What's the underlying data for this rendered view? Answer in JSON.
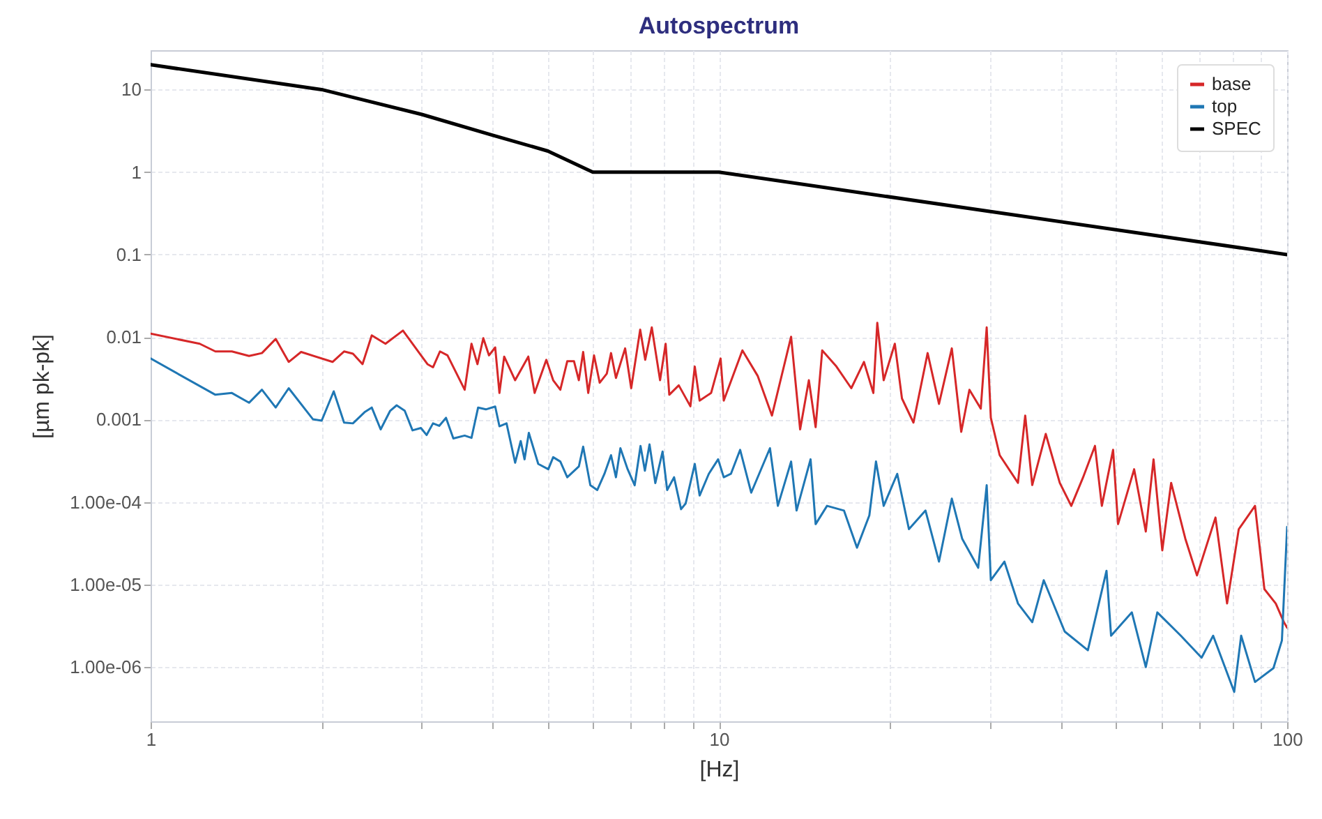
{
  "chart_data": {
    "type": "line",
    "title": "Autospectrum",
    "xlabel": "[Hz]",
    "ylabel": "[µm pk-pk]",
    "log": "xy",
    "grid": true,
    "legend": "top right",
    "xlim": [
      1,
      100
    ],
    "ylim": [
      2.2e-07,
      30
    ],
    "xticks": [
      1,
      {
        "value": 2,
        "label": null
      },
      {
        "value": 3,
        "label": null
      },
      {
        "value": 4,
        "label": null
      },
      {
        "value": 5,
        "label": null
      },
      {
        "value": 6,
        "label": null
      },
      {
        "value": 7,
        "label": null
      },
      {
        "value": 8,
        "label": null
      },
      {
        "value": 9,
        "label": null
      },
      10,
      {
        "value": 20,
        "label": null
      },
      {
        "value": 30,
        "label": null
      },
      {
        "value": 40,
        "label": null
      },
      {
        "value": 50,
        "label": null
      },
      {
        "value": 60,
        "label": null
      },
      {
        "value": 70,
        "label": null
      },
      {
        "value": 80,
        "label": null
      },
      {
        "value": 90,
        "label": null
      },
      100
    ],
    "yticks": [
      {
        "value": 1e-06,
        "label": "1.00e-06"
      },
      {
        "value": 1e-05,
        "label": "1.00e-05"
      },
      {
        "value": 0.0001,
        "label": "1.00e-04"
      },
      0.001,
      0.01,
      0.1,
      1,
      10
    ],
    "series": [
      {
        "name": "base",
        "color": "#d62728",
        "x": [
          1,
          1.22,
          1.3,
          1.39,
          1.49,
          1.57,
          1.66,
          1.75,
          1.84,
          2.09,
          2.19,
          2.27,
          2.36,
          2.45,
          2.59,
          2.78,
          3.07,
          3.14,
          3.23,
          3.33,
          3.57,
          3.67,
          3.76,
          3.85,
          3.94,
          4.04,
          4.11,
          4.19,
          4.38,
          4.62,
          4.74,
          4.97,
          5.11,
          5.26,
          5.41,
          5.56,
          5.67,
          5.77,
          5.89,
          6.03,
          6.17,
          6.35,
          6.46,
          6.59,
          6.84,
          7.01,
          7.27,
          7.42,
          7.62,
          7.88,
          8.06,
          8.18,
          8.5,
          8.91,
          9.07,
          9.25,
          9.69,
          10.07,
          10.2,
          11,
          11.7,
          12.4,
          13.4,
          13.9,
          14.4,
          14.8,
          15.2,
          16.1,
          17.1,
          18,
          18.7,
          19,
          19.5,
          20.4,
          21,
          22,
          23.3,
          24.4,
          25.7,
          26.7,
          27.6,
          28.9,
          29.6,
          30.1,
          31.2,
          33.6,
          34.6,
          35.6,
          37.6,
          39.8,
          41.7,
          43.7,
          45.9,
          47.2,
          49.4,
          50.4,
          53.8,
          56.4,
          58.2,
          60.3,
          62.5,
          66.2,
          69.4,
          74.8,
          78.4,
          82.2,
          87.8,
          91.2,
          95.5,
          98.7,
          100
        ],
        "values": [
          0.011,
          0.0083,
          0.0067,
          0.0067,
          0.0059,
          0.0064,
          0.0095,
          0.005,
          0.0066,
          0.005,
          0.0067,
          0.0063,
          0.0047,
          0.0105,
          0.0083,
          0.012,
          0.0047,
          0.0043,
          0.0067,
          0.006,
          0.0023,
          0.0083,
          0.0047,
          0.0097,
          0.006,
          0.0075,
          0.0021,
          0.0058,
          0.003,
          0.0058,
          0.0021,
          0.0053,
          0.003,
          0.0023,
          0.0051,
          0.0051,
          0.003,
          0.0066,
          0.0021,
          0.006,
          0.0028,
          0.0036,
          0.0064,
          0.0032,
          0.0073,
          0.0024,
          0.0123,
          0.0053,
          0.0131,
          0.003,
          0.0083,
          0.002,
          0.0026,
          0.00145,
          0.0044,
          0.0017,
          0.0021,
          0.0055,
          0.0017,
          0.0069,
          0.0034,
          0.00112,
          0.0101,
          0.00076,
          0.003,
          0.00081,
          0.0069,
          0.0044,
          0.0024,
          0.005,
          0.0021,
          0.0149,
          0.003,
          0.0083,
          0.0018,
          0.00092,
          0.0064,
          0.00155,
          0.0073,
          0.00071,
          0.0023,
          0.00136,
          0.0131,
          0.00105,
          0.00037,
          0.000171,
          0.00112,
          0.000161,
          0.00067,
          0.000171,
          9e-05,
          0.000196,
          0.00048,
          9e-05,
          0.00043,
          5.4e-05,
          0.00025,
          4.4e-05,
          0.00033,
          2.6e-05,
          0.000171,
          3.6e-05,
          1.29e-05,
          6.5e-05,
          5.9e-06,
          4.7e-05,
          9e-05,
          8.8e-06,
          5.9e-06,
          3.5e-06,
          3e-06
        ]
      },
      {
        "name": "top",
        "color": "#1f77b4",
        "x": [
          1,
          1.3,
          1.39,
          1.49,
          1.57,
          1.66,
          1.75,
          1.93,
          2,
          2.1,
          2.19,
          2.27,
          2.38,
          2.45,
          2.54,
          2.64,
          2.71,
          2.8,
          2.89,
          2.99,
          3.06,
          3.14,
          3.22,
          3.31,
          3.41,
          3.57,
          3.67,
          3.77,
          3.89,
          4.04,
          4.11,
          4.23,
          4.38,
          4.48,
          4.55,
          4.63,
          4.81,
          5.01,
          5.11,
          5.26,
          5.41,
          5.67,
          5.77,
          5.94,
          6.11,
          6.29,
          6.46,
          6.59,
          6.71,
          6.91,
          7.11,
          7.28,
          7.41,
          7.55,
          7.73,
          7.96,
          8.11,
          8.34,
          8.58,
          8.74,
          9.07,
          9.25,
          9.6,
          9.97,
          10.2,
          10.5,
          10.9,
          11.4,
          12.3,
          12.7,
          13.4,
          13.7,
          14.5,
          14.8,
          15.5,
          16.6,
          17.5,
          18.4,
          18.9,
          19.5,
          20.6,
          21.6,
          23.1,
          24.4,
          25.7,
          26.8,
          28.6,
          29.6,
          30.1,
          31.8,
          33.6,
          35.6,
          37.3,
          40.6,
          44.6,
          48.1,
          49,
          53.3,
          56.4,
          59.1,
          65,
          70.7,
          74.1,
          80.7,
          83,
          87.8,
          94.6,
          97.9,
          100
        ],
        "values": [
          0.0055,
          0.002,
          0.0021,
          0.0016,
          0.0023,
          0.0014,
          0.0024,
          0.00101,
          0.00097,
          0.0022,
          0.00092,
          0.0009,
          0.00123,
          0.0014,
          0.00076,
          0.00128,
          0.00149,
          0.00128,
          0.00074,
          0.00079,
          0.00065,
          0.0009,
          0.00084,
          0.00105,
          0.00059,
          0.00064,
          0.0006,
          0.0014,
          0.00133,
          0.00144,
          0.00083,
          0.0009,
          0.0003,
          0.00055,
          0.00033,
          0.00069,
          0.00029,
          0.00025,
          0.00035,
          0.00031,
          0.0002,
          0.00027,
          0.00047,
          0.00016,
          0.00014,
          0.00022,
          0.00037,
          0.0002,
          0.00045,
          0.00025,
          0.00016,
          0.00048,
          0.00024,
          0.0005,
          0.00017,
          0.00041,
          0.00014,
          0.0002,
          8.2e-05,
          9.6e-05,
          0.00029,
          0.00012,
          0.00022,
          0.00033,
          0.0002,
          0.00022,
          0.00043,
          0.00013,
          0.00045,
          9e-05,
          0.00031,
          7.9e-05,
          0.00033,
          5.4e-05,
          9e-05,
          7.9e-05,
          2.8e-05,
          6.9e-05,
          0.00031,
          9e-05,
          0.00022,
          4.7e-05,
          7.9e-05,
          1.9e-05,
          0.00011,
          3.6e-05,
          1.6e-05,
          0.00016,
          1.13e-05,
          1.9e-05,
          5.9e-06,
          3.5e-06,
          1.13e-05,
          2.7e-06,
          1.6e-06,
          1.47e-05,
          2.4e-06,
          4.6e-06,
          1e-06,
          4.6e-06,
          2.4e-06,
          1.3e-06,
          2.4e-06,
          5e-07,
          2.4e-06,
          6.6e-07,
          9.7e-07,
          2.1e-06,
          5e-05
        ]
      },
      {
        "name": "SPEC",
        "color": "#000000",
        "x": [
          1,
          2,
          3,
          4,
          5,
          6,
          10,
          100
        ],
        "values": [
          20,
          10,
          5,
          2.8,
          1.8,
          1,
          1,
          0.1
        ]
      }
    ]
  }
}
